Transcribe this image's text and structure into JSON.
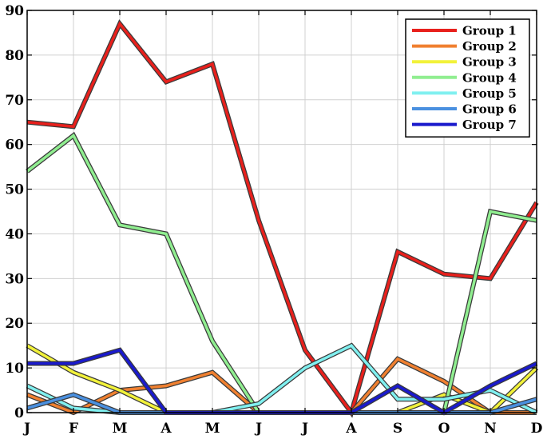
{
  "chart_data": {
    "type": "line",
    "title": "",
    "xlabel": "",
    "ylabel": "",
    "categories": [
      "J",
      "F",
      "M",
      "A",
      "M",
      "J",
      "J",
      "A",
      "S",
      "O",
      "N",
      "D"
    ],
    "ylim": [
      0,
      90
    ],
    "yticks": [
      0,
      10,
      20,
      30,
      40,
      50,
      60,
      70,
      80,
      90
    ],
    "grid": true,
    "legend_position": "top-right",
    "series": [
      {
        "name": "Group 1",
        "color": "#e8201c",
        "values": [
          65,
          64,
          87,
          74,
          78,
          43,
          14,
          0,
          36,
          31,
          30,
          47
        ]
      },
      {
        "name": "Group 2",
        "color": "#f08030",
        "values": [
          4,
          0,
          5,
          6,
          9,
          0,
          0,
          0,
          12,
          7,
          0,
          0
        ]
      },
      {
        "name": "Group 3",
        "color": "#f2f23a",
        "values": [
          15,
          9,
          5,
          0,
          0,
          0,
          0,
          0,
          0,
          4,
          0,
          10
        ]
      },
      {
        "name": "Group 4",
        "color": "#90ee90",
        "values": [
          54,
          62,
          42,
          40,
          16,
          0,
          0,
          0,
          0,
          0,
          45,
          43
        ]
      },
      {
        "name": "Group 5",
        "color": "#80f0f0",
        "values": [
          6,
          1,
          0,
          0,
          0,
          2,
          10,
          15,
          3,
          3,
          5,
          0
        ]
      },
      {
        "name": "Group 6",
        "color": "#4a90e0",
        "values": [
          1,
          4,
          0,
          0,
          0,
          0,
          0,
          0,
          0,
          0,
          0,
          3
        ]
      },
      {
        "name": "Group 7",
        "color": "#1a1acc",
        "values": [
          11,
          11,
          14,
          0,
          0,
          0,
          0,
          0,
          6,
          0,
          6,
          11
        ]
      }
    ]
  }
}
